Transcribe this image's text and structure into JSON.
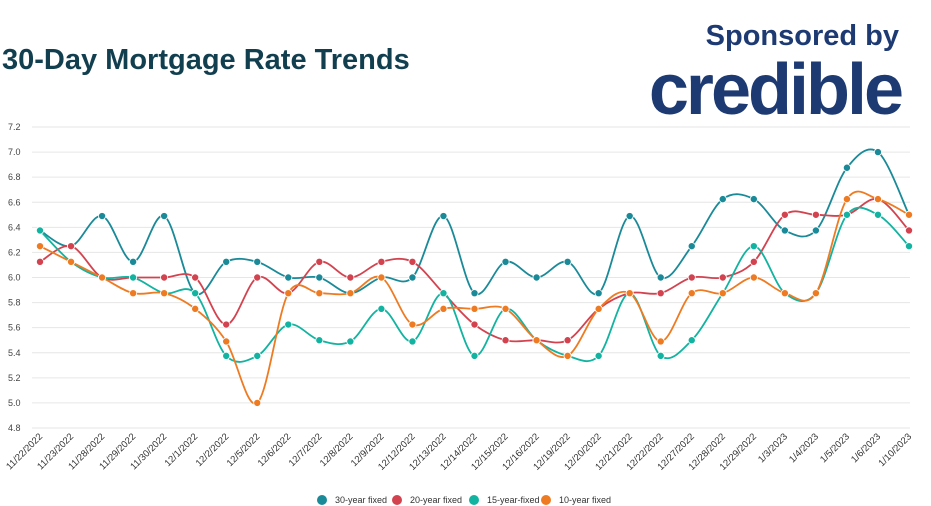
{
  "header": {
    "title": "30-Day Mortgage Rate Trends"
  },
  "sponsor": {
    "label": "Sponsored by",
    "brand": "credible"
  },
  "chart_data": {
    "type": "line",
    "title": "30-Day Mortgage Rate Trends",
    "xlabel": "",
    "ylabel": "",
    "ylim": [
      4.8,
      7.2
    ],
    "yticks": [
      4.8,
      5.0,
      5.2,
      5.4,
      5.6,
      5.8,
      6.0,
      6.2,
      6.4,
      6.6,
      6.8,
      7.0,
      7.2
    ],
    "grid": true,
    "legend_position": "bottom",
    "categories": [
      "11/22/2022",
      "11/23/2022",
      "11/28/2022",
      "11/29/2022",
      "11/30/2022",
      "12/1/2022",
      "12/2/2022",
      "12/5/2022",
      "12/6/2022",
      "12/7/2022",
      "12/8/2022",
      "12/9/2022",
      "12/12/2022",
      "12/13/2022",
      "12/14/2022",
      "12/15/2022",
      "12/16/2022",
      "12/19/2022",
      "12/20/2022",
      "12/21/2022",
      "12/22/2022",
      "12/27/2022",
      "12/28/2022",
      "12/29/2022",
      "1/3/2023",
      "1/4/2023",
      "1/5/2023",
      "1/6/2023",
      "1/10/2023"
    ],
    "series": [
      {
        "name": "30-year fixed",
        "color": "#1a8a98",
        "values": [
          6.375,
          6.25,
          6.49,
          6.125,
          6.49,
          5.875,
          6.125,
          6.125,
          6.0,
          6.0,
          5.875,
          6.0,
          6.0,
          6.49,
          5.875,
          6.125,
          6.0,
          6.125,
          5.875,
          6.49,
          6.0,
          6.25,
          6.625,
          6.625,
          6.375,
          6.375,
          6.875,
          7.0,
          6.5
        ]
      },
      {
        "name": "20-year fixed",
        "color": "#d3434f",
        "values": [
          6.125,
          6.25,
          6.0,
          6.0,
          6.0,
          6.0,
          5.625,
          6.0,
          5.875,
          6.125,
          6.0,
          6.125,
          6.125,
          5.875,
          5.625,
          5.5,
          5.5,
          5.5,
          5.75,
          5.875,
          5.875,
          6.0,
          6.0,
          6.125,
          6.5,
          6.5,
          6.5,
          6.625,
          6.375
        ]
      },
      {
        "name": "15-year-fixed",
        "color": "#12b3a0",
        "values": [
          6.375,
          6.125,
          6.0,
          6.0,
          5.875,
          5.875,
          5.375,
          5.375,
          5.625,
          5.5,
          5.49,
          5.75,
          5.49,
          5.875,
          5.375,
          5.75,
          5.5,
          5.375,
          5.375,
          5.875,
          5.375,
          5.5,
          5.875,
          6.25,
          5.875,
          5.875,
          6.5,
          6.5,
          6.25
        ]
      },
      {
        "name": "10-year fixed",
        "color": "#ee7b22",
        "values": [
          6.25,
          6.125,
          6.0,
          5.875,
          5.875,
          5.75,
          5.49,
          5.0,
          5.875,
          5.875,
          5.875,
          6.0,
          5.625,
          5.75,
          5.75,
          5.75,
          5.5,
          5.375,
          5.75,
          5.875,
          5.49,
          5.875,
          5.875,
          6.0,
          5.875,
          5.875,
          6.625,
          6.625,
          6.5
        ]
      }
    ]
  }
}
